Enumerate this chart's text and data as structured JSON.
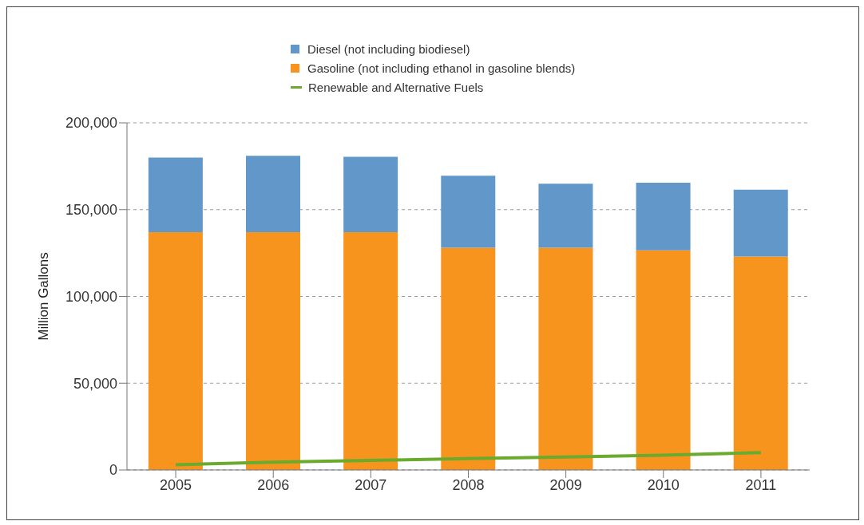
{
  "chart_data": {
    "type": "bar",
    "stacked": true,
    "ylabel": "Million Gallons",
    "categories": [
      "2005",
      "2006",
      "2007",
      "2008",
      "2009",
      "2010",
      "2011"
    ],
    "series": [
      {
        "name": "Gasoline (not including ethanol in gasoline blends)",
        "color": "#f7941d",
        "values": [
          137000,
          137000,
          137000,
          128000,
          128000,
          126500,
          123000
        ]
      },
      {
        "name": "Diesel (not including biodiesel)",
        "color": "#6198c9",
        "values": [
          43000,
          44000,
          43500,
          41500,
          37000,
          39000,
          38500
        ]
      },
      {
        "name": "Renewable and Alternative Fuels",
        "type": "line",
        "color": "#6aab2e",
        "values": [
          3000,
          4500,
          5500,
          6500,
          7500,
          8500,
          10000
        ]
      }
    ],
    "ylim": [
      0,
      200000
    ],
    "yticks": [
      0,
      {
        "value": 50000,
        "label": "50,000"
      },
      {
        "value": 100000,
        "label": "100,000"
      },
      {
        "value": 150000,
        "label": "150,000"
      },
      {
        "value": 200000,
        "label": "200,000"
      }
    ],
    "grid": "y",
    "legend": "top",
    "marker": "none"
  }
}
